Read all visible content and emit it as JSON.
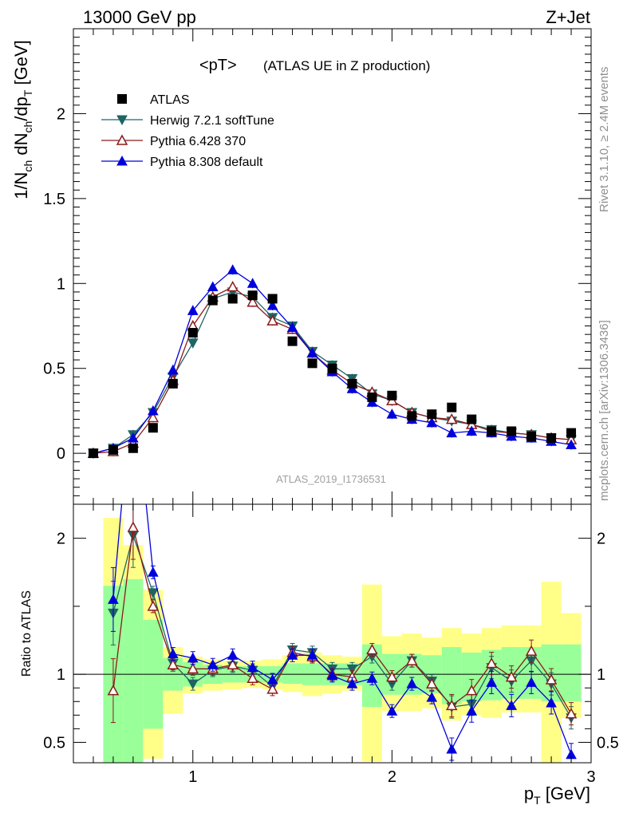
{
  "header": {
    "energy_label": "13000 GeV pp",
    "process_label": "Z+Jet",
    "plot_title": "<pT>",
    "plot_subtitle": "(ATLAS UE in Z production)",
    "analysis_id": "ATLAS_2019_I1736531",
    "side_label_top": "Rivet 3.1.10, ≥ 2.4M events",
    "side_label_bottom": "mcplots.cern.ch [arXiv:1306.3436]"
  },
  "axes": {
    "ylabel_main": "1/N_ch dN_ch/dp_T [GeV]",
    "ylabel_ratio": "Ratio to ATLAS",
    "xlabel": "p_T [GeV]"
  },
  "colors": {
    "atlas": "#000000",
    "herwig": "#1f6464",
    "pythia6": "#8b1a1a",
    "pythia8": "#0000dd",
    "band_inner": "#99ff99",
    "band_outer": "#ffff88"
  },
  "chart_data": [
    {
      "type": "line",
      "panel": "main",
      "xlim": [
        0.4,
        3.0
      ],
      "ylim": [
        -0.3,
        2.5
      ],
      "x_ticks": [
        1,
        2,
        3
      ],
      "y_ticks": [
        0,
        0.5,
        1,
        1.5,
        2
      ],
      "y_tick_labels": [
        "0",
        "0.5",
        "1",
        "1.5",
        "2"
      ],
      "legend_position": "top-left",
      "x": [
        0.5,
        0.6,
        0.7,
        0.8,
        0.9,
        1.0,
        1.1,
        1.2,
        1.3,
        1.4,
        1.5,
        1.6,
        1.7,
        1.8,
        1.9,
        2.0,
        2.1,
        2.2,
        2.3,
        2.4,
        2.5,
        2.6,
        2.7,
        2.8,
        2.9
      ],
      "series": [
        {
          "name": "ATLAS",
          "marker": "square",
          "values": [
            0.0,
            0.02,
            0.03,
            0.15,
            0.41,
            0.71,
            0.9,
            0.91,
            0.93,
            0.91,
            0.66,
            0.53,
            0.5,
            0.41,
            0.33,
            0.34,
            0.22,
            0.23,
            0.27,
            0.2,
            0.13,
            0.13,
            0.1,
            0.09,
            0.12
          ]
        },
        {
          "name": "Herwig 7.2.1 softTune",
          "marker": "triangle-down",
          "values": [
            0.0,
            0.03,
            0.11,
            0.24,
            0.45,
            0.65,
            0.91,
            0.95,
            0.92,
            0.8,
            0.75,
            0.6,
            0.52,
            0.44,
            0.35,
            0.31,
            0.24,
            0.21,
            0.19,
            0.17,
            0.14,
            0.12,
            0.11,
            0.09,
            0.08
          ]
        },
        {
          "name": "Pythia 6.428 370",
          "marker": "triangle-up-open",
          "values": [
            0.0,
            0.01,
            0.06,
            0.21,
            0.43,
            0.75,
            0.92,
            0.98,
            0.89,
            0.78,
            0.73,
            0.59,
            0.49,
            0.41,
            0.36,
            0.31,
            0.24,
            0.21,
            0.2,
            0.17,
            0.13,
            0.12,
            0.11,
            0.09,
            0.08
          ]
        },
        {
          "name": "Pythia 8.308 default",
          "marker": "triangle-up",
          "values": [
            0.0,
            0.03,
            0.09,
            0.25,
            0.49,
            0.84,
            0.98,
            1.08,
            1.0,
            0.87,
            0.74,
            0.59,
            0.48,
            0.38,
            0.3,
            0.23,
            0.2,
            0.18,
            0.12,
            0.13,
            0.12,
            0.1,
            0.09,
            0.07,
            0.05
          ]
        }
      ]
    },
    {
      "type": "line",
      "panel": "ratio",
      "xlim": [
        0.4,
        3.0
      ],
      "ylim": [
        0.35,
        2.25
      ],
      "x_ticks": [
        1,
        2,
        3
      ],
      "x_tick_labels": [
        "1",
        "2",
        "3"
      ],
      "y_ticks": [
        0.5,
        1,
        2
      ],
      "y_tick_labels": [
        "0.5",
        "1",
        "2"
      ],
      "reference_line": 1,
      "x": [
        0.6,
        0.7,
        0.8,
        0.9,
        1.0,
        1.1,
        1.2,
        1.3,
        1.4,
        1.5,
        1.6,
        1.7,
        1.8,
        1.9,
        2.0,
        2.1,
        2.2,
        2.3,
        2.4,
        2.5,
        2.6,
        2.7,
        2.8,
        2.9
      ],
      "bands": {
        "edges": [
          0.55,
          0.65,
          0.75,
          0.85,
          0.95,
          1.05,
          1.15,
          1.25,
          1.35,
          1.45,
          1.55,
          1.65,
          1.75,
          1.85,
          1.95,
          2.05,
          2.15,
          2.25,
          2.35,
          2.45,
          2.55,
          2.65,
          2.75,
          2.85,
          2.95
        ],
        "inner_low": [
          0.3,
          0.3,
          0.6,
          0.88,
          0.91,
          0.93,
          0.94,
          0.94,
          0.94,
          0.93,
          0.92,
          0.92,
          0.92,
          0.76,
          0.85,
          0.85,
          0.86,
          0.78,
          0.8,
          0.81,
          0.82,
          0.82,
          0.8,
          0.8
        ],
        "inner_high": [
          1.65,
          1.7,
          1.4,
          1.12,
          1.09,
          1.07,
          1.06,
          1.06,
          1.06,
          1.08,
          1.08,
          1.08,
          1.08,
          1.22,
          1.15,
          1.15,
          1.14,
          1.2,
          1.16,
          1.18,
          1.2,
          1.2,
          1.22,
          1.22
        ]
      },
      "outer_bands": {
        "outer_low": [
          0.3,
          0.3,
          0.38,
          0.71,
          0.86,
          0.88,
          0.89,
          0.9,
          0.89,
          0.87,
          0.84,
          0.86,
          0.88,
          0.36,
          0.73,
          0.73,
          0.75,
          0.66,
          0.7,
          0.68,
          0.72,
          0.72,
          0.35,
          0.68
        ],
        "outer_high": [
          2.15,
          1.95,
          1.62,
          1.2,
          1.13,
          1.11,
          1.1,
          1.1,
          1.11,
          1.14,
          1.16,
          1.14,
          1.13,
          1.66,
          1.28,
          1.3,
          1.27,
          1.34,
          1.3,
          1.34,
          1.36,
          1.36,
          1.68,
          1.45
        ]
      },
      "series": [
        {
          "name": "Herwig 7.2.1 softTune",
          "values": [
            1.45,
            2.02,
            1.6,
            1.08,
            0.93,
            1.03,
            1.06,
            1.03,
            0.91,
            1.18,
            1.16,
            1.04,
            1.04,
            1.13,
            0.93,
            1.1,
            0.95,
            0.76,
            0.78,
            1.05,
            0.95,
            1.1,
            0.93,
            0.68
          ]
        },
        {
          "name": "Pythia 6.428 370",
          "values": [
            0.88,
            2.08,
            1.5,
            1.07,
            1.04,
            1.04,
            1.07,
            0.97,
            0.89,
            1.16,
            1.13,
            1.0,
            0.98,
            1.18,
            0.98,
            1.1,
            0.93,
            0.77,
            0.88,
            1.08,
            0.98,
            1.17,
            0.96,
            0.71
          ]
        },
        {
          "name": "Pythia 8.308 default",
          "values": [
            1.55,
            3.2,
            1.75,
            1.15,
            1.12,
            1.07,
            1.14,
            1.05,
            0.96,
            1.14,
            1.14,
            0.99,
            0.93,
            0.97,
            0.73,
            0.93,
            0.83,
            0.45,
            0.73,
            0.94,
            0.77,
            0.94,
            0.79,
            0.41
          ]
        }
      ]
    }
  ]
}
